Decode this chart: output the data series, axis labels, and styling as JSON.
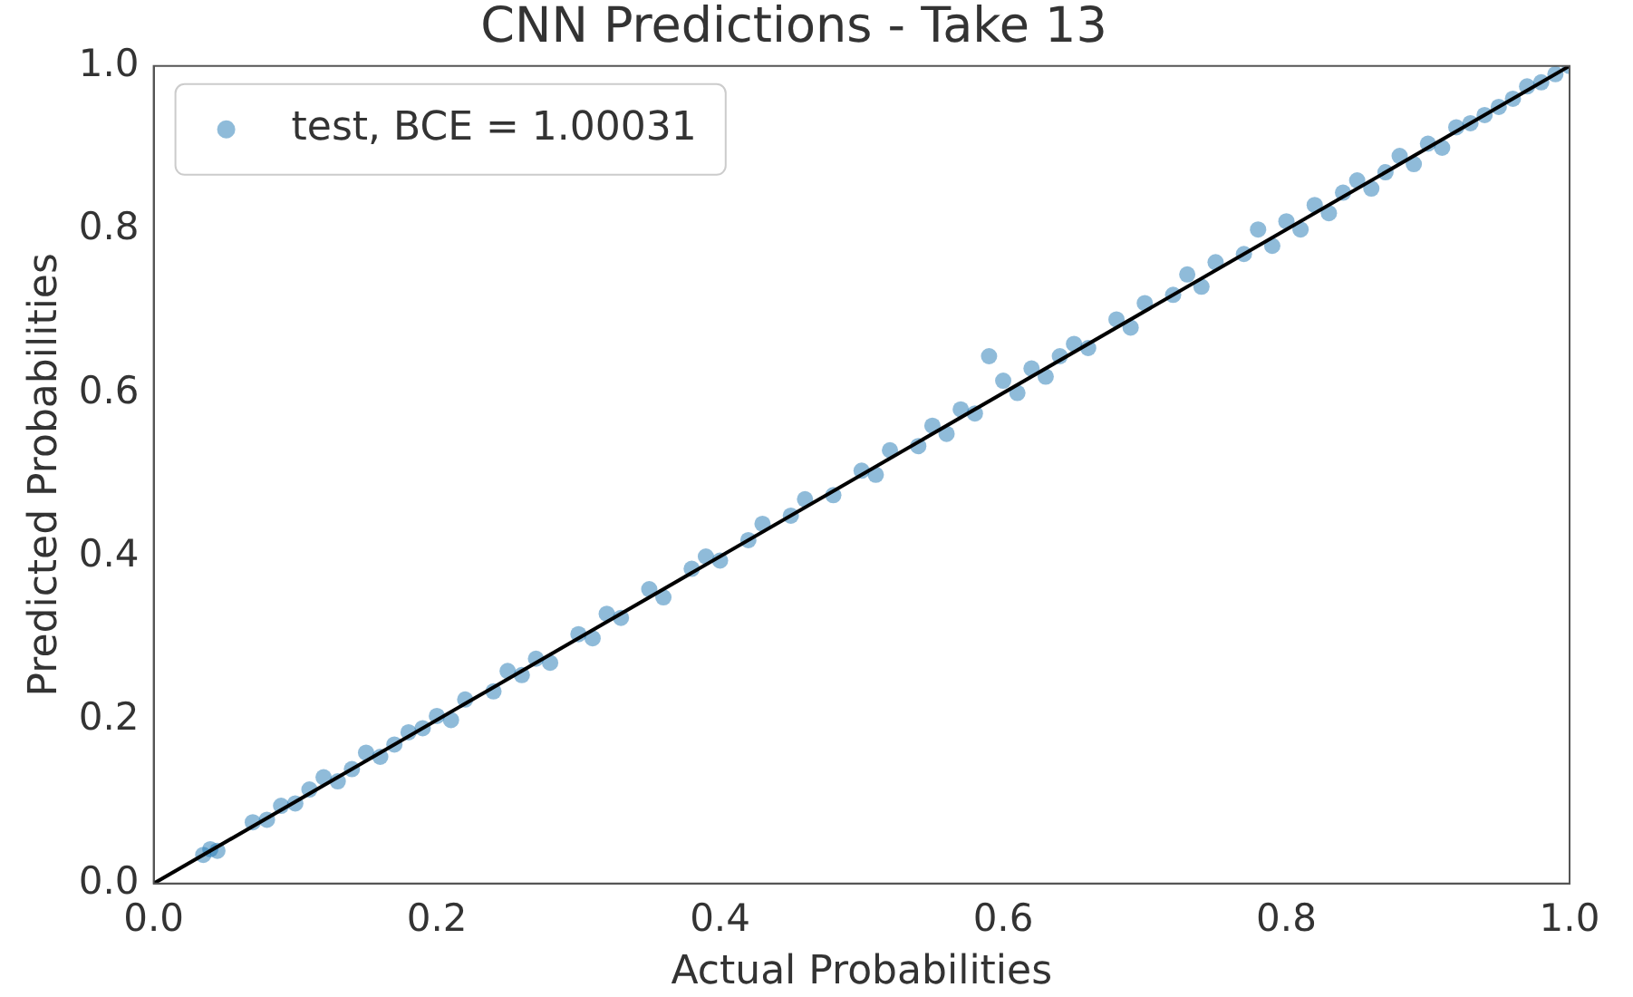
{
  "chart_data": {
    "type": "scatter",
    "title": "CNN Predictions - Take 13",
    "xlabel": "Actual Probabilities",
    "ylabel": "Predicted Probabilities",
    "xlim": [
      0,
      1
    ],
    "ylim": [
      0,
      1
    ],
    "xticks": [
      {
        "value": 0,
        "label": "0.0"
      },
      {
        "value": 0.2,
        "label": "0.2"
      },
      {
        "value": 0.4,
        "label": "0.4"
      },
      {
        "value": 0.6,
        "label": "0.6"
      },
      {
        "value": 0.8,
        "label": "0.8"
      },
      {
        "value": 1,
        "label": "1.0"
      }
    ],
    "yticks": [
      {
        "value": 0,
        "label": "0.0"
      },
      {
        "value": 0.2,
        "label": "0.2"
      },
      {
        "value": 0.4,
        "label": "0.4"
      },
      {
        "value": 0.6,
        "label": "0.6"
      },
      {
        "value": 0.8,
        "label": "0.8"
      },
      {
        "value": 1,
        "label": "1.0"
      }
    ],
    "grid": false,
    "legend": "top left",
    "series": [
      {
        "name": "test, BCE = 1.00031",
        "marker": "circle",
        "color": "#1f77b4",
        "x": [
          0.035,
          0.04,
          0.045,
          0.07,
          0.08,
          0.09,
          0.1,
          0.11,
          0.12,
          0.13,
          0.14,
          0.15,
          0.16,
          0.17,
          0.18,
          0.19,
          0.2,
          0.21,
          0.22,
          0.24,
          0.25,
          0.26,
          0.27,
          0.28,
          0.3,
          0.31,
          0.32,
          0.33,
          0.35,
          0.36,
          0.38,
          0.39,
          0.4,
          0.42,
          0.43,
          0.45,
          0.46,
          0.48,
          0.5,
          0.51,
          0.52,
          0.54,
          0.55,
          0.56,
          0.57,
          0.58,
          0.59,
          0.6,
          0.61,
          0.62,
          0.63,
          0.64,
          0.65,
          0.66,
          0.68,
          0.69,
          0.7,
          0.72,
          0.73,
          0.74,
          0.75,
          0.77,
          0.78,
          0.79,
          0.8,
          0.81,
          0.82,
          0.83,
          0.84,
          0.85,
          0.86,
          0.87,
          0.88,
          0.89,
          0.9,
          0.91,
          0.92,
          0.93,
          0.94,
          0.95,
          0.96,
          0.97,
          0.98,
          0.99,
          1.0
        ],
        "values": [
          0.035,
          0.042,
          0.04,
          0.075,
          0.078,
          0.095,
          0.098,
          0.115,
          0.13,
          0.125,
          0.14,
          0.16,
          0.155,
          0.17,
          0.185,
          0.19,
          0.205,
          0.2,
          0.225,
          0.235,
          0.26,
          0.255,
          0.275,
          0.27,
          0.305,
          0.3,
          0.33,
          0.325,
          0.36,
          0.35,
          0.385,
          0.4,
          0.395,
          0.42,
          0.44,
          0.45,
          0.47,
          0.475,
          0.505,
          0.5,
          0.53,
          0.535,
          0.56,
          0.55,
          0.58,
          0.575,
          0.645,
          0.615,
          0.6,
          0.63,
          0.62,
          0.645,
          0.66,
          0.655,
          0.69,
          0.68,
          0.71,
          0.72,
          0.745,
          0.73,
          0.76,
          0.77,
          0.8,
          0.78,
          0.81,
          0.8,
          0.83,
          0.82,
          0.845,
          0.86,
          0.85,
          0.87,
          0.89,
          0.88,
          0.905,
          0.9,
          0.925,
          0.93,
          0.94,
          0.95,
          0.96,
          0.975,
          0.98,
          0.99,
          1.0
        ]
      },
      {
        "type": "line",
        "color": "#000000",
        "x": [
          0,
          1
        ],
        "values": [
          0,
          1
        ]
      }
    ]
  }
}
